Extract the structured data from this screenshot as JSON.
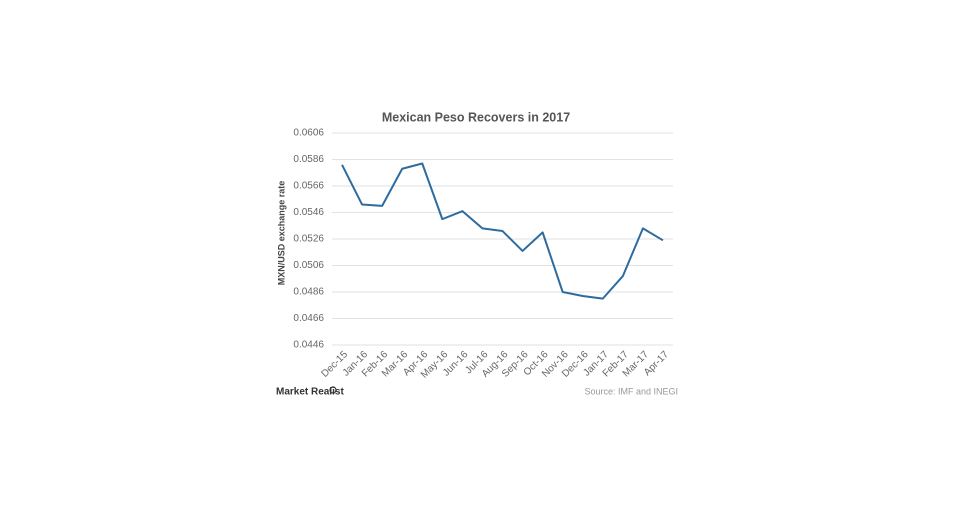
{
  "chart_data": {
    "type": "line",
    "title": "Mexican Peso Recovers in 2017",
    "y_label": "MXN/USD exchange rate",
    "source": "Source: IMF and INEGI",
    "brand": "Market Realist",
    "categories": [
      "Dec-15",
      "Jan-16",
      "Feb-16",
      "Mar-16",
      "Apr-16",
      "May-16",
      "Jun-16",
      "Jul-16",
      "Aug-16",
      "Sep-16",
      "Oct-16",
      "Nov-16",
      "Dec-16",
      "Jan-17",
      "Feb-17",
      "Mar-17",
      "Apr-17"
    ],
    "values": [
      0.0582,
      0.0552,
      0.0551,
      0.0579,
      0.0583,
      0.0541,
      0.0547,
      0.0534,
      0.0532,
      0.0517,
      0.0531,
      0.0486,
      0.0483,
      0.0481,
      0.0498,
      0.0534,
      0.0525
    ],
    "color": "#2e6b9e",
    "ylim": [
      0.0446,
      0.0606
    ],
    "yticks": [
      0.0446,
      0.0466,
      0.0486,
      0.0506,
      0.0526,
      0.0546,
      0.0566,
      0.0586,
      0.0606
    ],
    "grid": true
  }
}
